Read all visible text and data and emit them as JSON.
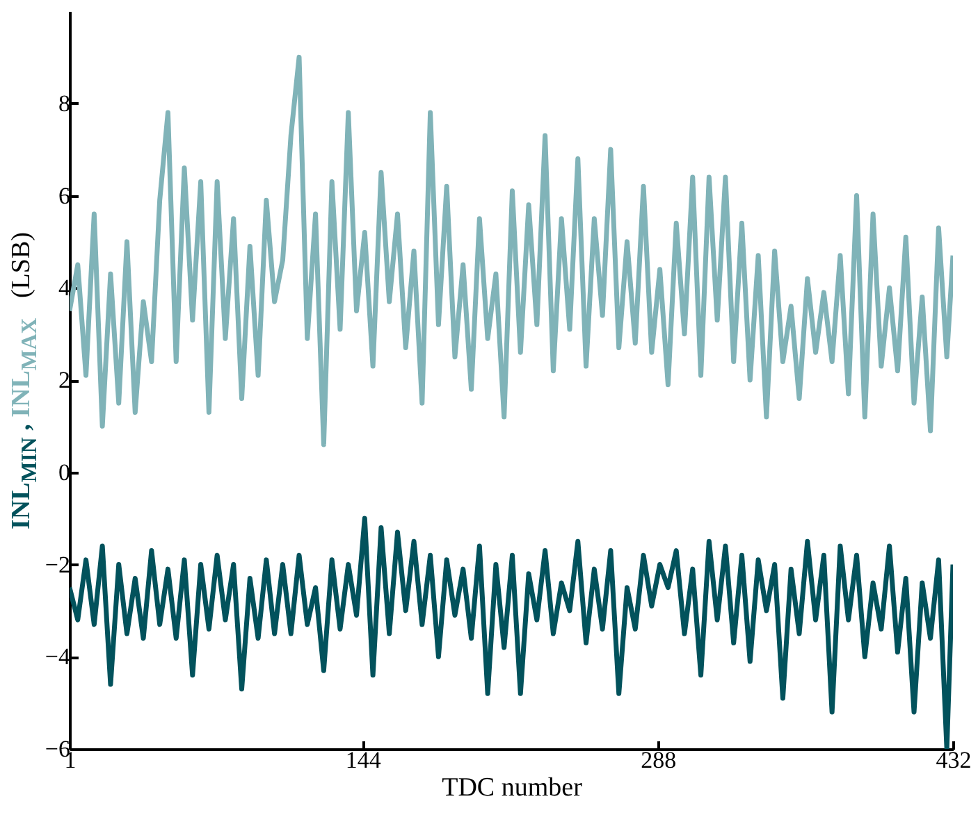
{
  "chart_data": {
    "type": "line",
    "xlabel": "TDC number",
    "ylabel": "(LSB)",
    "xlim": [
      1,
      432
    ],
    "xticks": [
      1,
      144,
      288,
      432
    ],
    "ylim": [
      -6,
      10
    ],
    "yticks": [
      -6,
      -4,
      -2,
      0,
      2,
      4,
      6,
      8
    ],
    "grid": false,
    "marker": "none",
    "line_style": "solid",
    "x": [
      1,
      5,
      9,
      13,
      17,
      21,
      25,
      29,
      33,
      37,
      41,
      45,
      49,
      53,
      57,
      61,
      65,
      69,
      73,
      77,
      81,
      85,
      89,
      93,
      97,
      101,
      105,
      109,
      113,
      117,
      121,
      125,
      129,
      133,
      137,
      141,
      145,
      149,
      153,
      157,
      161,
      165,
      169,
      173,
      177,
      181,
      185,
      189,
      193,
      197,
      201,
      205,
      209,
      213,
      217,
      221,
      225,
      229,
      233,
      237,
      241,
      245,
      249,
      253,
      257,
      261,
      265,
      269,
      273,
      277,
      281,
      285,
      289,
      293,
      297,
      301,
      305,
      309,
      313,
      317,
      321,
      325,
      329,
      333,
      337,
      341,
      345,
      349,
      353,
      357,
      361,
      365,
      369,
      373,
      377,
      381,
      385,
      389,
      393,
      397,
      401,
      405,
      409,
      413,
      417,
      421,
      425,
      429,
      432
    ],
    "series": [
      {
        "name": "INL$_{MIN}$ ,",
        "color": "#02525c",
        "values": [
          -2.5,
          -3.2,
          -1.9,
          -3.3,
          -1.6,
          -4.6,
          -2.0,
          -3.5,
          -2.3,
          -3.6,
          -1.7,
          -3.3,
          -2.1,
          -3.6,
          -1.9,
          -4.4,
          -2.0,
          -3.4,
          -1.8,
          -3.2,
          -2.0,
          -4.7,
          -2.3,
          -3.6,
          -1.9,
          -3.5,
          -2.0,
          -3.5,
          -1.8,
          -3.3,
          -2.5,
          -4.3,
          -1.9,
          -3.4,
          -2.0,
          -3.1,
          -1.0,
          -4.4,
          -1.2,
          -3.5,
          -1.3,
          -3.0,
          -1.5,
          -3.3,
          -1.8,
          -4.0,
          -1.9,
          -3.1,
          -2.1,
          -3.6,
          -1.6,
          -4.8,
          -2.0,
          -3.8,
          -1.8,
          -4.8,
          -2.2,
          -3.2,
          -1.7,
          -3.5,
          -2.4,
          -3.0,
          -1.5,
          -3.7,
          -2.1,
          -3.4,
          -1.7,
          -4.8,
          -2.5,
          -3.4,
          -1.8,
          -2.9,
          -2.0,
          -2.5,
          -1.7,
          -3.5,
          -2.1,
          -4.4,
          -1.5,
          -3.2,
          -1.6,
          -3.7,
          -1.8,
          -4.1,
          -1.9,
          -3.0,
          -2.0,
          -4.9,
          -2.1,
          -3.5,
          -1.5,
          -3.2,
          -1.8,
          -5.2,
          -1.6,
          -3.2,
          -1.8,
          -4.0,
          -2.4,
          -3.4,
          -1.6,
          -3.9,
          -2.3,
          -5.2,
          -2.4,
          -3.6,
          -1.9,
          -6.0,
          -2.0
        ]
      },
      {
        "name": "INL$_{MAX}$",
        "color": "#80b3b8",
        "values": [
          3.5,
          4.5,
          2.1,
          5.6,
          1.0,
          4.3,
          1.5,
          5.0,
          1.3,
          3.7,
          2.4,
          5.9,
          7.8,
          2.4,
          6.6,
          3.3,
          6.3,
          1.3,
          6.3,
          2.9,
          5.5,
          1.6,
          4.9,
          2.1,
          5.9,
          3.7,
          4.6,
          7.3,
          9.0,
          2.9,
          5.6,
          0.6,
          6.3,
          3.1,
          7.8,
          3.5,
          5.2,
          2.3,
          6.5,
          3.7,
          5.6,
          2.7,
          4.8,
          1.5,
          7.8,
          3.2,
          6.2,
          2.5,
          4.5,
          1.8,
          5.5,
          2.9,
          4.3,
          1.2,
          6.1,
          2.6,
          5.8,
          3.2,
          7.3,
          2.2,
          5.5,
          3.1,
          6.8,
          2.3,
          5.5,
          3.4,
          7.0,
          2.7,
          5.0,
          2.8,
          6.2,
          2.6,
          4.4,
          1.9,
          5.4,
          3.0,
          6.4,
          2.1,
          6.4,
          3.3,
          6.4,
          2.4,
          5.4,
          2.0,
          4.7,
          1.2,
          4.8,
          2.4,
          3.6,
          1.6,
          4.2,
          2.6,
          3.9,
          2.4,
          4.7,
          1.7,
          6.0,
          1.2,
          5.6,
          2.3,
          4.0,
          2.2,
          5.1,
          1.5,
          3.8,
          0.9,
          5.3,
          2.5,
          4.7
        ]
      }
    ]
  }
}
